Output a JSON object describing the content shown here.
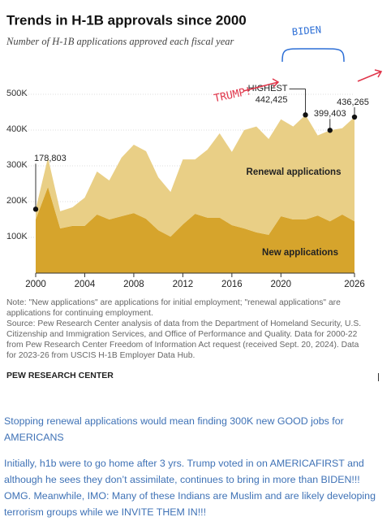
{
  "chart_data": {
    "type": "stacked-area",
    "title": "Trends in H-1B approvals since 2000",
    "subtitle": "Number of H-1B applications approved each fiscal year",
    "x": [
      2000,
      2001,
      2002,
      2003,
      2004,
      2005,
      2006,
      2007,
      2008,
      2009,
      2010,
      2011,
      2012,
      2013,
      2014,
      2015,
      2016,
      2017,
      2018,
      2019,
      2020,
      2021,
      2022,
      2023,
      2024,
      2025,
      2026
    ],
    "series": [
      {
        "name": "New applications",
        "color": "#d6a42c",
        "values": [
          150000,
          241000,
          125000,
          132000,
          132000,
          164000,
          150000,
          159000,
          168000,
          152000,
          120000,
          102000,
          136000,
          166000,
          155000,
          155000,
          134000,
          125000,
          114000,
          107000,
          159000,
          150000,
          150000,
          161000,
          145000,
          164000,
          145000
        ]
      },
      {
        "name": "Renewal applications",
        "color": "#e9cf86",
        "values": [
          28803,
          82000,
          48000,
          52000,
          79000,
          120000,
          109000,
          164000,
          191000,
          189000,
          148000,
          125000,
          182000,
          152000,
          190000,
          236000,
          205000,
          275000,
          296000,
          268000,
          271000,
          260000,
          292425,
          224000,
          254403,
          241000,
          291265
        ]
      }
    ],
    "xlim": [
      2000,
      2026
    ],
    "xticks": [
      2000,
      2004,
      2008,
      2012,
      2016,
      2020,
      2026
    ],
    "ylim": [
      0,
      550000
    ],
    "yticks": [
      {
        "value": 100000,
        "label": "100K"
      },
      {
        "value": 200000,
        "label": "200K"
      },
      {
        "value": 300000,
        "label": "300K"
      },
      {
        "value": 400000,
        "label": "400K"
      },
      {
        "value": 500000,
        "label": "500K"
      }
    ],
    "grid": true,
    "annotations": [
      {
        "x": 2000,
        "text": "178,803"
      },
      {
        "x": 2022,
        "label": "HIGHEST",
        "text": "442,425"
      },
      {
        "x": 2024,
        "text": "399,403"
      },
      {
        "x": 2026,
        "text": "436,265"
      }
    ],
    "handwritten": [
      "TRUMP!",
      "BIDEN"
    ],
    "note": "Note: \"New applications\" are applications for initial employment; \"renewal applications\" are applications for continuing employment.",
    "source": "Source: Pew Research Center analysis of data from the Department of Homeland Security, U.S. Citizenship and Immigration Services, and Office of Performance and Quality. Data for 2000-22 from Pew Research Center Freedom of Information Act request (received Sept. 20, 2024). Data for 2023-26 from USCIS H-1B Employer Data Hub.",
    "credit": "PEW RESEARCH CENTER"
  },
  "comment": {
    "paragraphs": [
      "Stopping renewal applications would mean finding 300K new GOOD jobs for AMERICANS",
      "Initially, h1b were to go home after 3 yrs. Trump voted in on AMERICAFIRST and although he sees they don’t assimilate, continues to bring in more than BIDEN!!! OMG. Meanwhile, IMO: Many of these Indians are Muslim and are likely developing terrorism groups while we INVITE THEM IN!!!"
    ]
  }
}
